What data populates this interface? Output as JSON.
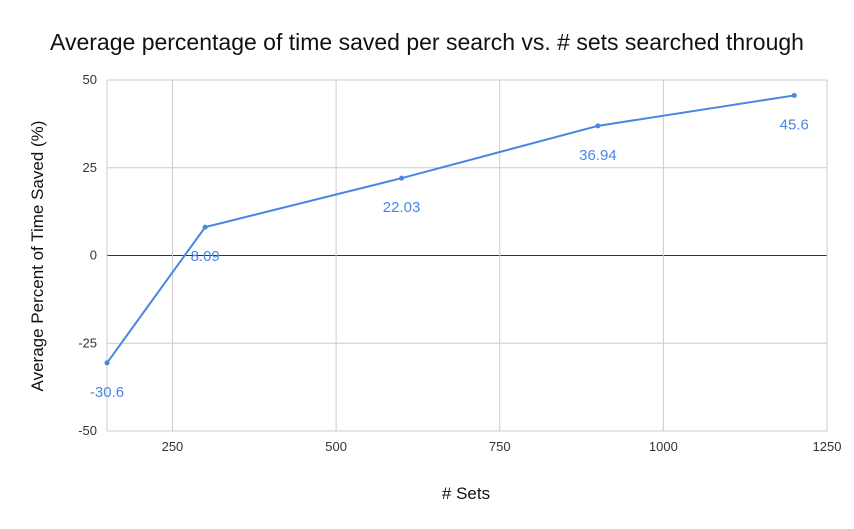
{
  "chart_data": {
    "type": "line",
    "title": "Average percentage of time saved per search vs. # sets searched through",
    "xlabel": "# Sets",
    "ylabel": "Average Percent of Time Saved (%)",
    "x": [
      150,
      300,
      600,
      900,
      1200
    ],
    "series": [
      {
        "values": [
          -30.6,
          8.09,
          22.03,
          36.94,
          45.6
        ]
      }
    ],
    "data_labels": [
      "-30.6",
      "8.09",
      "22.03",
      "36.94",
      "45.6"
    ],
    "xlim": [
      150,
      1250
    ],
    "ylim": [
      -50,
      50
    ],
    "xticks": [
      250,
      500,
      750,
      1000,
      1250
    ],
    "yticks": [
      -50,
      -25,
      0,
      25,
      50
    ],
    "grid": true,
    "legend": "none",
    "colors": {
      "series": "#4a86e8",
      "grid": "#cccccc",
      "zero_line": "#333333"
    }
  }
}
